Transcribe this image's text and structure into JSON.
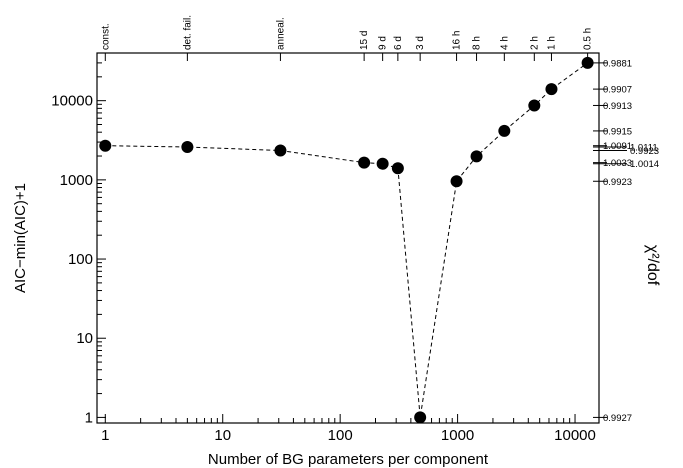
{
  "chart_data": {
    "type": "scatter",
    "xlabel": "Number of BG parameters per component",
    "ylabel": "AIC−min(AIC)+1",
    "ylabel_right": "χ²/dof",
    "x_scale": "log",
    "y_scale": "log",
    "xlim": [
      0.85,
      16000
    ],
    "ylim": [
      0.85,
      40000
    ],
    "x_ticks": [
      1,
      10,
      100,
      1000,
      10000
    ],
    "x_tick_labels": [
      "1",
      "10",
      "100",
      "1000",
      "10000"
    ],
    "y_ticks": [
      1,
      10,
      100,
      1000,
      10000
    ],
    "y_tick_labels": [
      "1",
      "10",
      "100",
      "1000",
      "10000"
    ],
    "line_style": "dashed",
    "grid": false,
    "points": [
      {
        "x": 1,
        "y": 2700
      },
      {
        "x": 5,
        "y": 2600
      },
      {
        "x": 31,
        "y": 2350
      },
      {
        "x": 160,
        "y": 1650
      },
      {
        "x": 230,
        "y": 1600
      },
      {
        "x": 310,
        "y": 1400
      },
      {
        "x": 480,
        "y": 1
      },
      {
        "x": 980,
        "y": 960
      },
      {
        "x": 1450,
        "y": 1980
      },
      {
        "x": 2500,
        "y": 4150
      },
      {
        "x": 4500,
        "y": 8700
      },
      {
        "x": 6300,
        "y": 14000
      },
      {
        "x": 12800,
        "y": 30000
      }
    ],
    "top_labels": [
      {
        "x": 1,
        "text": "const."
      },
      {
        "x": 5,
        "text": "det. fail."
      },
      {
        "x": 31,
        "text": "anneal."
      },
      {
        "x": 160,
        "text": "15 d"
      },
      {
        "x": 230,
        "text": "9 d"
      },
      {
        "x": 310,
        "text": "6 d"
      },
      {
        "x": 480,
        "text": "3 d"
      },
      {
        "x": 980,
        "text": "16 h"
      },
      {
        "x": 1450,
        "text": "8 h"
      },
      {
        "x": 2500,
        "text": "4 h"
      },
      {
        "x": 4500,
        "text": "2 h"
      },
      {
        "x": 6300,
        "text": "1 h"
      },
      {
        "x": 12800,
        "text": "0.5 h"
      }
    ],
    "right_labels": [
      {
        "y": 30000,
        "text": "0.9881"
      },
      {
        "y": 14000,
        "text": "0.9907"
      },
      {
        "y": 8700,
        "text": "0.9913"
      },
      {
        "y": 4150,
        "text": "0.9915"
      },
      {
        "y": 2700,
        "text": "1.0091",
        "group": "a"
      },
      {
        "y": 2600,
        "text": "1.0111",
        "group": "b"
      },
      {
        "y": 2350,
        "text": "0.9923",
        "group": "b"
      },
      {
        "y": 1650,
        "text": "1.0033",
        "group": "a"
      },
      {
        "y": 1600,
        "text": "1.0014",
        "group": "b"
      },
      {
        "y": 960,
        "text": "0.9923"
      },
      {
        "y": 1,
        "text": "0.9927"
      }
    ]
  }
}
